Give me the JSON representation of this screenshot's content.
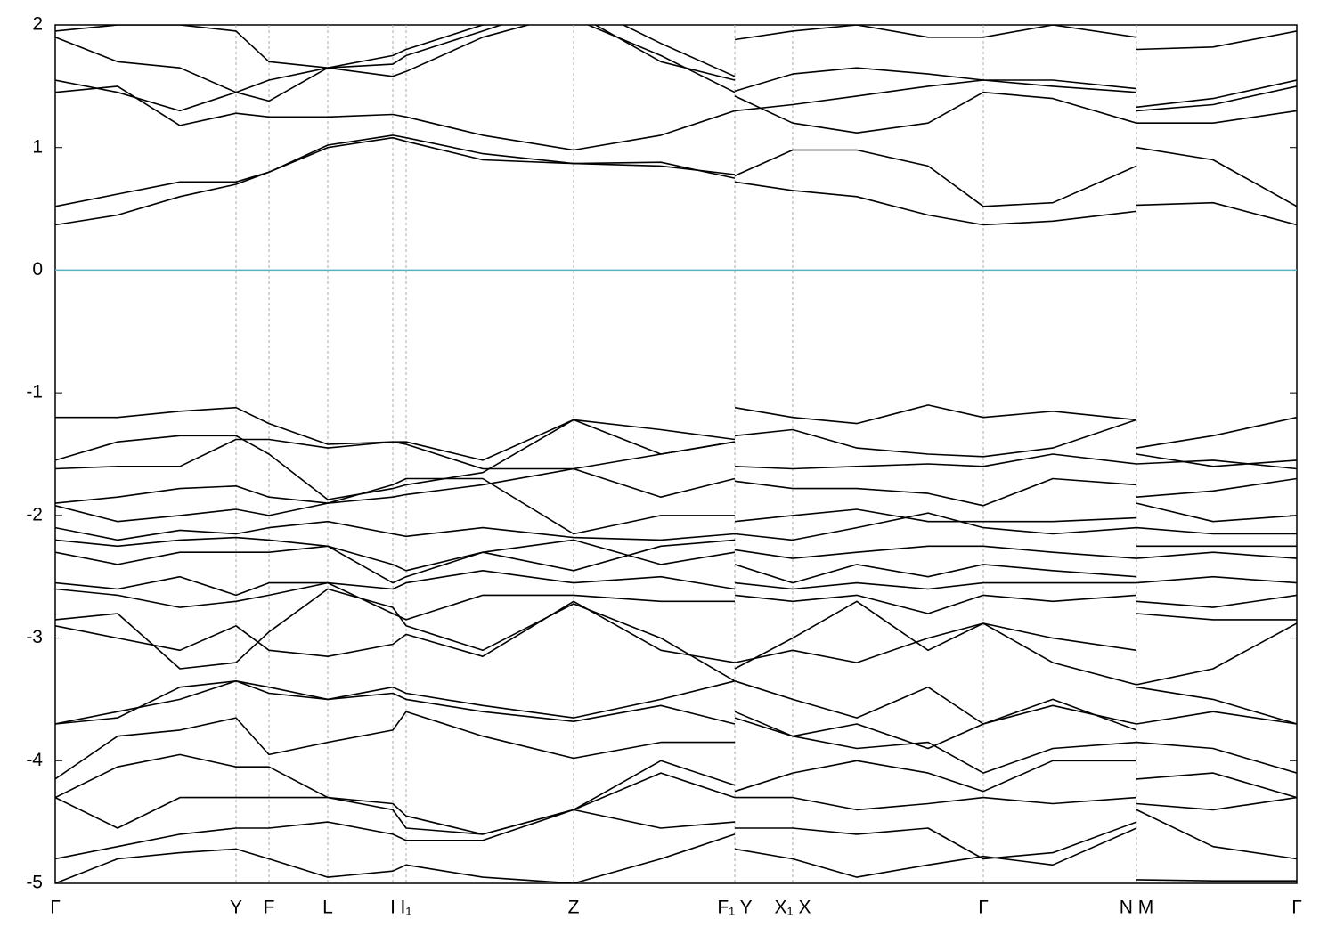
{
  "chart_data": {
    "type": "line",
    "xlim": [
      0,
      1394
    ],
    "ylim": [
      -5,
      2
    ],
    "yticks": [
      -5,
      -4,
      -3,
      -2,
      -1,
      0,
      1,
      2
    ],
    "xticks": [
      {
        "value": 0,
        "label": "Γ"
      },
      {
        "value": 203,
        "label": "Y"
      },
      {
        "value": 240,
        "label": "F"
      },
      {
        "value": 306,
        "label": "L"
      },
      {
        "value": 379,
        "label": "I"
      },
      {
        "value": 394,
        "label": "I₁"
      },
      {
        "value": 582,
        "label": "Z"
      },
      {
        "value": 763,
        "label": "F₁ Y"
      },
      {
        "value": 828,
        "label": "X₁ X"
      },
      {
        "value": 1042,
        "label": "Γ"
      },
      {
        "value": 1214,
        "label": "N M"
      },
      {
        "value": 1394,
        "label": "Γ"
      }
    ],
    "xgrid": true,
    "color": "#000000",
    "hline": 0,
    "hline_color": "#5bb0c8",
    "x": [
      0,
      70,
      140,
      203,
      240,
      306,
      379,
      394,
      480,
      582,
      680,
      763,
      null,
      763,
      828,
      900,
      980,
      1042,
      1120,
      1214,
      null,
      1214,
      1300,
      1394
    ],
    "series": [
      {
        "values": [
          0.37,
          0.45,
          0.6,
          0.7,
          0.8,
          1.0,
          1.08,
          1.05,
          0.9,
          0.87,
          0.85,
          0.78,
          null,
          0.72,
          0.65,
          0.6,
          0.45,
          0.37,
          0.4,
          0.48,
          null,
          0.53,
          0.55,
          0.37
        ]
      },
      {
        "values": [
          0.52,
          0.62,
          0.72,
          0.72,
          0.8,
          1.02,
          1.1,
          1.08,
          0.95,
          0.87,
          0.88,
          0.75,
          null,
          0.77,
          0.98,
          0.98,
          0.85,
          0.52,
          0.55,
          0.85,
          null,
          1.0,
          0.9,
          0.52
        ]
      },
      {
        "values": [
          1.45,
          1.5,
          1.18,
          1.28,
          1.25,
          1.25,
          1.27,
          1.25,
          1.1,
          0.98,
          1.1,
          1.3,
          null,
          1.42,
          1.2,
          1.12,
          1.2,
          1.45,
          1.4,
          1.2,
          null,
          1.33,
          1.4,
          1.55
        ]
      },
      {
        "values": [
          1.55,
          1.45,
          1.3,
          1.45,
          1.38,
          1.65,
          1.75,
          1.8,
          2.0,
          2.05,
          1.75,
          1.45,
          null,
          1.3,
          1.35,
          1.42,
          1.5,
          1.55,
          1.5,
          1.45,
          null,
          1.2,
          1.2,
          1.3
        ]
      },
      {
        "values": [
          1.9,
          1.7,
          1.65,
          1.45,
          1.55,
          1.65,
          1.68,
          1.75,
          1.95,
          2.2,
          1.85,
          1.58,
          null,
          1.46,
          1.6,
          1.65,
          1.6,
          1.55,
          1.55,
          1.48,
          null,
          1.3,
          1.35,
          1.5
        ]
      },
      {
        "values": [
          1.95,
          2.0,
          2.0,
          1.95,
          1.7,
          1.65,
          1.58,
          1.62,
          1.9,
          2.1,
          1.7,
          1.55,
          null,
          1.88,
          1.95,
          2.0,
          1.9,
          1.9,
          2.0,
          1.9,
          null,
          1.8,
          1.82,
          1.95
        ]
      },
      {
        "values": [
          -1.2,
          -1.2,
          -1.15,
          -1.12,
          -1.25,
          -1.42,
          -1.4,
          -1.4,
          -1.55,
          -1.22,
          -1.3,
          -1.38,
          null,
          -1.12,
          -1.2,
          -1.25,
          -1.1,
          -1.2,
          -1.15,
          -1.22,
          null,
          -1.45,
          -1.35,
          -1.2
        ]
      },
      {
        "values": [
          -1.55,
          -1.4,
          -1.35,
          -1.35,
          -1.5,
          -1.87,
          -1.78,
          -1.75,
          -1.65,
          -1.22,
          -1.5,
          -1.4,
          null,
          -1.35,
          -1.3,
          -1.45,
          -1.5,
          -1.52,
          -1.45,
          -1.22,
          null,
          -1.5,
          -1.6,
          -1.55
        ]
      },
      {
        "values": [
          -1.62,
          -1.6,
          -1.6,
          -1.38,
          -1.38,
          -1.45,
          -1.4,
          -1.42,
          -1.62,
          -1.62,
          -1.5,
          -1.4,
          null,
          -1.6,
          -1.62,
          -1.6,
          -1.58,
          -1.6,
          -1.5,
          -1.58,
          null,
          -1.58,
          -1.55,
          -1.62
        ]
      },
      {
        "values": [
          -1.9,
          -1.85,
          -1.78,
          -1.76,
          -1.85,
          -1.9,
          -1.85,
          -1.83,
          -1.75,
          -1.62,
          -1.85,
          -1.7,
          null,
          -1.72,
          -1.78,
          -1.78,
          -1.82,
          -1.92,
          -1.7,
          -1.75,
          null,
          -1.85,
          -1.8,
          -1.7
        ]
      },
      {
        "values": [
          -1.92,
          -2.05,
          -2.0,
          -1.95,
          -2.0,
          -1.9,
          -1.75,
          -1.7,
          -1.7,
          -2.15,
          -2.0,
          -2.0,
          null,
          -2.05,
          -2.0,
          -1.95,
          -2.05,
          -2.05,
          -2.05,
          -2.02,
          null,
          -1.9,
          -2.05,
          -2.0
        ]
      },
      {
        "values": [
          -2.1,
          -2.2,
          -2.12,
          -2.15,
          -2.1,
          -2.05,
          -2.15,
          -2.17,
          -2.1,
          -2.18,
          -2.2,
          -2.15,
          null,
          -2.15,
          -2.2,
          -2.1,
          -1.98,
          -2.1,
          -2.15,
          -2.1,
          null,
          -2.1,
          -2.15,
          -2.15
        ]
      },
      {
        "values": [
          -2.2,
          -2.25,
          -2.2,
          -2.18,
          -2.2,
          -2.25,
          -2.4,
          -2.45,
          -2.3,
          -2.2,
          -2.4,
          -2.3,
          null,
          -2.28,
          -2.35,
          -2.3,
          -2.25,
          -2.25,
          -2.3,
          -2.35,
          null,
          -2.25,
          -2.25,
          -2.25
        ]
      },
      {
        "values": [
          -2.3,
          -2.4,
          -2.3,
          -2.3,
          -2.3,
          -2.25,
          -2.55,
          -2.5,
          -2.3,
          -2.45,
          -2.25,
          -2.2,
          null,
          -2.4,
          -2.55,
          -2.4,
          -2.5,
          -2.4,
          -2.45,
          -2.5,
          null,
          -2.35,
          -2.3,
          -2.35
        ]
      },
      {
        "values": [
          -2.55,
          -2.6,
          -2.5,
          -2.65,
          -2.55,
          -2.55,
          -2.6,
          -2.55,
          -2.45,
          -2.55,
          -2.5,
          -2.6,
          null,
          -2.55,
          -2.6,
          -2.55,
          -2.6,
          -2.55,
          -2.55,
          -2.55,
          null,
          -2.55,
          -2.5,
          -2.55
        ]
      },
      {
        "values": [
          -2.6,
          -2.65,
          -2.75,
          -2.7,
          -2.65,
          -2.55,
          -2.8,
          -2.85,
          -2.65,
          -2.65,
          -2.7,
          -2.7,
          null,
          -2.65,
          -2.7,
          -2.65,
          -2.8,
          -2.65,
          -2.7,
          -2.65,
          null,
          -2.7,
          -2.75,
          -2.65
        ]
      },
      {
        "values": [
          -2.85,
          -2.8,
          -3.25,
          -3.2,
          -2.95,
          -2.6,
          -2.75,
          -2.9,
          -3.1,
          -2.72,
          -3.0,
          -3.35,
          null,
          -3.25,
          -3.0,
          -2.7,
          -3.1,
          -2.88,
          -3.0,
          -3.1,
          null,
          -2.8,
          -2.85,
          -2.85
        ]
      },
      {
        "values": [
          -2.9,
          -3.0,
          -3.1,
          -2.9,
          -3.1,
          -3.15,
          -3.05,
          -2.97,
          -3.15,
          -2.7,
          -3.1,
          -3.2,
          null,
          -3.2,
          -3.1,
          -3.2,
          -3.0,
          -2.88,
          -3.2,
          -3.38,
          null,
          -3.38,
          -3.25,
          -2.88
        ]
      },
      {
        "values": [
          -3.7,
          -3.6,
          -3.5,
          -3.35,
          -3.45,
          -3.5,
          -3.4,
          -3.45,
          -3.55,
          -3.65,
          -3.5,
          -3.35,
          null,
          -3.35,
          -3.5,
          -3.65,
          -3.4,
          -3.7,
          -3.55,
          -3.7,
          null,
          -3.4,
          -3.5,
          -3.7
        ]
      },
      {
        "values": [
          -3.7,
          -3.65,
          -3.4,
          -3.35,
          -3.4,
          -3.5,
          -3.45,
          -3.5,
          -3.6,
          -3.68,
          -3.55,
          -3.7,
          null,
          -3.6,
          -3.8,
          -3.7,
          -3.9,
          -3.7,
          -3.5,
          -3.75,
          null,
          -3.7,
          -3.6,
          -3.7
        ]
      },
      {
        "values": [
          -4.15,
          -3.8,
          -3.75,
          -3.65,
          -3.95,
          -3.85,
          -3.75,
          -3.6,
          -3.8,
          -3.98,
          -3.85,
          -3.85,
          null,
          -3.65,
          -3.8,
          -3.9,
          -3.85,
          -4.1,
          -3.9,
          -3.85,
          null,
          -3.85,
          -3.9,
          -4.1
        ]
      },
      {
        "values": [
          -4.3,
          -4.05,
          -3.95,
          -4.05,
          -4.05,
          -4.3,
          -4.4,
          -4.55,
          -4.6,
          -4.4,
          -4.0,
          -4.2,
          null,
          -4.25,
          -4.1,
          -4.0,
          -4.1,
          -4.25,
          -4.0,
          -4.0,
          null,
          -4.15,
          -4.1,
          -4.3
        ]
      },
      {
        "values": [
          -4.3,
          -4.55,
          -4.3,
          -4.3,
          -4.3,
          -4.3,
          -4.35,
          -4.45,
          -4.6,
          -4.4,
          -4.1,
          -4.3,
          null,
          -4.3,
          -4.3,
          -4.4,
          -4.35,
          -4.3,
          -4.35,
          -4.3,
          null,
          -4.35,
          -4.4,
          -4.3
        ]
      },
      {
        "values": [
          -4.8,
          -4.7,
          -4.6,
          -4.55,
          -4.55,
          -4.5,
          -4.6,
          -4.65,
          -4.65,
          -4.4,
          -4.55,
          -4.5,
          null,
          -4.55,
          -4.55,
          -4.6,
          -4.55,
          -4.8,
          -4.75,
          -4.5,
          null,
          -4.4,
          -4.7,
          -4.8
        ]
      },
      {
        "values": [
          -5.0,
          -4.8,
          -4.75,
          -4.72,
          -4.8,
          -4.95,
          -4.9,
          -4.85,
          -4.95,
          -5.0,
          -4.8,
          -4.6,
          null,
          -4.72,
          -4.8,
          -4.95,
          -4.85,
          -4.78,
          -4.85,
          -4.55,
          null,
          -4.97,
          -4.98,
          -4.98
        ]
      }
    ]
  }
}
